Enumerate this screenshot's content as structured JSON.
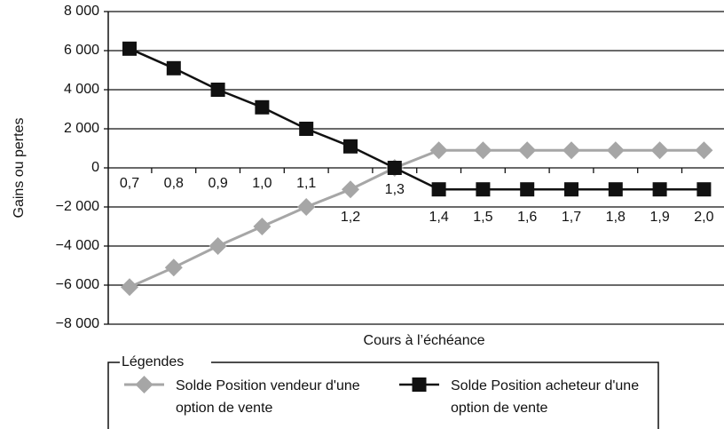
{
  "chart_data": {
    "type": "line",
    "x_label": "Cours à l’échéance",
    "y_label": "Gains ou pertes",
    "legend_title": "Légendes",
    "categories": [
      "0,7",
      "0,8",
      "0,9",
      "1,0",
      "1,1",
      "1,2",
      "1,3",
      "1,4",
      "1,5",
      "1,6",
      "1,7",
      "1,8",
      "1,9",
      "2,0"
    ],
    "series": [
      {
        "name": "Solde Position vendeur d'une option de vente",
        "color": "#a6a6a6",
        "marker": "diamond",
        "values": [
          -6100,
          -5100,
          -4000,
          -3000,
          -2000,
          -1100,
          0,
          900,
          900,
          900,
          900,
          900,
          900,
          900
        ]
      },
      {
        "name": "Solde Position acheteur d'une option de vente",
        "color": "#111111",
        "marker": "square",
        "values": [
          6100,
          5100,
          4000,
          3100,
          2000,
          1100,
          0,
          -1100,
          -1100,
          -1100,
          -1100,
          -1100,
          -1100,
          -1100
        ]
      }
    ],
    "ylim": [
      -8000,
      8000
    ],
    "yticks": [
      {
        "value": -8000,
        "label": "−8 000"
      },
      {
        "value": -6000,
        "label": "−6 000"
      },
      {
        "value": -4000,
        "label": "−4 000"
      },
      {
        "value": -2000,
        "label": "−2 000"
      },
      0,
      {
        "value": 2000,
        "label": "2 000"
      },
      {
        "value": 4000,
        "label": "4 000"
      },
      {
        "value": 6000,
        "label": "6 000"
      },
      {
        "value": 8000,
        "label": "8 000"
      }
    ],
    "grid": true
  }
}
